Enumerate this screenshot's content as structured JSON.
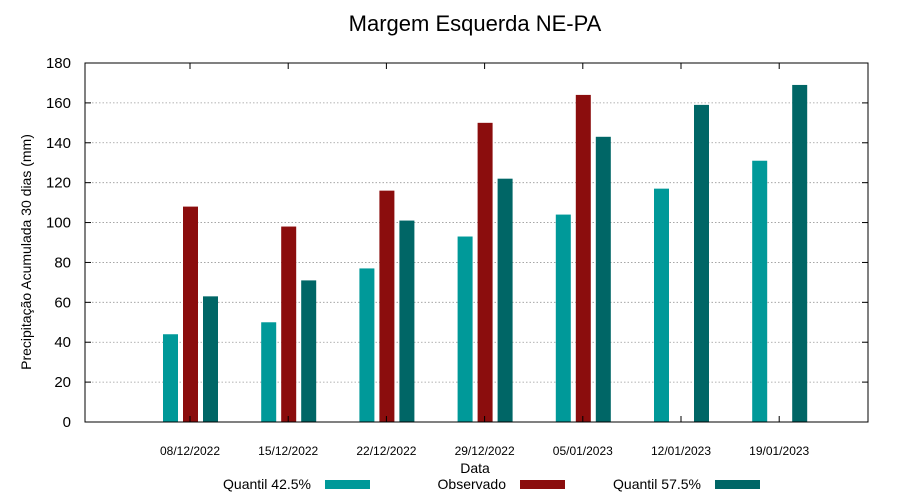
{
  "chart_data": {
    "type": "bar",
    "title": "Margem Esquerda NE-PA",
    "xlabel": "Data",
    "ylabel": "Precipitação Acumulada 30 dias (mm)",
    "ylim": [
      0,
      180
    ],
    "yticks": [
      0,
      20,
      40,
      60,
      80,
      100,
      120,
      140,
      160,
      180
    ],
    "grid": true,
    "legend_position": "bottom",
    "categories": [
      "08/12/2022",
      "15/12/2022",
      "22/12/2022",
      "29/12/2022",
      "05/01/2023",
      "12/01/2023",
      "19/01/2023"
    ],
    "series": [
      {
        "name": "Quantil 42.5%",
        "color": "#009999",
        "values": [
          44,
          50,
          77,
          93,
          104,
          117,
          131
        ]
      },
      {
        "name": "Observado",
        "color": "#8b0d0d",
        "values": [
          108,
          98,
          116,
          150,
          164,
          null,
          null
        ]
      },
      {
        "name": "Quantil 57.5%",
        "color": "#006666",
        "values": [
          63,
          71,
          101,
          122,
          143,
          159,
          169
        ]
      }
    ]
  }
}
